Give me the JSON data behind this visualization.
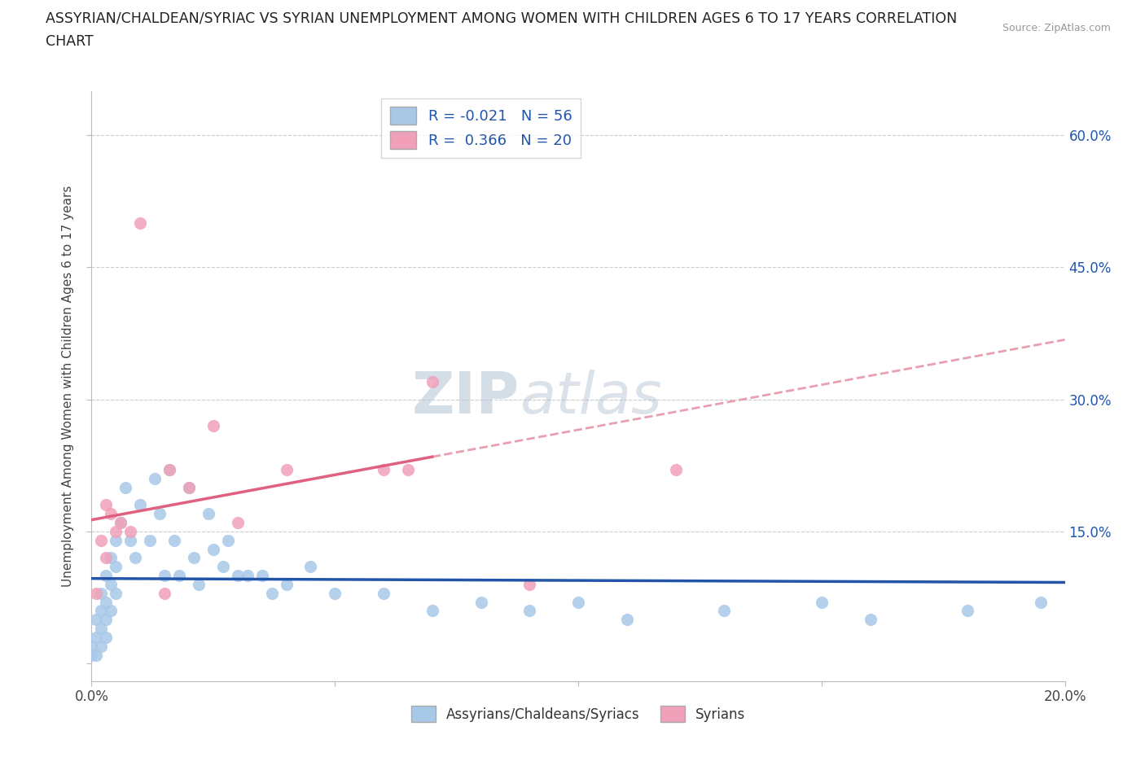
{
  "title_line1": "ASSYRIAN/CHALDEAN/SYRIAC VS SYRIAN UNEMPLOYMENT AMONG WOMEN WITH CHILDREN AGES 6 TO 17 YEARS CORRELATION",
  "title_line2": "CHART",
  "source": "Source: ZipAtlas.com",
  "ylabel": "Unemployment Among Women with Children Ages 6 to 17 years",
  "xlim": [
    0.0,
    0.2
  ],
  "ylim": [
    -0.02,
    0.65
  ],
  "x_ticks": [
    0.0,
    0.05,
    0.1,
    0.15,
    0.2
  ],
  "x_tick_labels": [
    "0.0%",
    "",
    "",
    "",
    "20.0%"
  ],
  "y_ticks": [
    0.0,
    0.15,
    0.3,
    0.45,
    0.6
  ],
  "y_tick_labels_right": [
    "",
    "15.0%",
    "30.0%",
    "45.0%",
    "60.0%"
  ],
  "r_blue": -0.021,
  "n_blue": 56,
  "r_pink": 0.366,
  "n_pink": 20,
  "blue_color": "#A8C8E8",
  "pink_color": "#F0A0B8",
  "blue_line_color": "#2255AA",
  "pink_line_color": "#E06080",
  "pink_dash_color": "#E8A0B0",
  "watermark_zip": "ZIP",
  "watermark_atlas": "atlas",
  "legend_label_blue": "Assyrians/Chaldeans/Syriacs",
  "legend_label_pink": "Syrians",
  "grid_color": "#CCCCCC",
  "background_color": "#FFFFFF",
  "blue_scatter_x": [
    0.0,
    0.0,
    0.001,
    0.001,
    0.001,
    0.002,
    0.002,
    0.002,
    0.002,
    0.003,
    0.003,
    0.003,
    0.003,
    0.004,
    0.004,
    0.004,
    0.005,
    0.005,
    0.005,
    0.006,
    0.007,
    0.008,
    0.009,
    0.01,
    0.012,
    0.013,
    0.014,
    0.015,
    0.016,
    0.017,
    0.018,
    0.02,
    0.021,
    0.022,
    0.024,
    0.025,
    0.027,
    0.028,
    0.03,
    0.032,
    0.035,
    0.037,
    0.04,
    0.045,
    0.05,
    0.06,
    0.07,
    0.08,
    0.09,
    0.1,
    0.11,
    0.13,
    0.15,
    0.16,
    0.18,
    0.195
  ],
  "blue_scatter_y": [
    0.02,
    0.01,
    0.05,
    0.03,
    0.01,
    0.08,
    0.06,
    0.04,
    0.02,
    0.1,
    0.07,
    0.05,
    0.03,
    0.12,
    0.09,
    0.06,
    0.14,
    0.11,
    0.08,
    0.16,
    0.2,
    0.14,
    0.12,
    0.18,
    0.14,
    0.21,
    0.17,
    0.1,
    0.22,
    0.14,
    0.1,
    0.2,
    0.12,
    0.09,
    0.17,
    0.13,
    0.11,
    0.14,
    0.1,
    0.1,
    0.1,
    0.08,
    0.09,
    0.11,
    0.08,
    0.08,
    0.06,
    0.07,
    0.06,
    0.07,
    0.05,
    0.06,
    0.07,
    0.05,
    0.06,
    0.07
  ],
  "pink_scatter_x": [
    0.001,
    0.002,
    0.003,
    0.003,
    0.004,
    0.005,
    0.006,
    0.008,
    0.01,
    0.015,
    0.016,
    0.02,
    0.025,
    0.03,
    0.04,
    0.06,
    0.065,
    0.07,
    0.09,
    0.12
  ],
  "pink_scatter_y": [
    0.08,
    0.14,
    0.12,
    0.18,
    0.17,
    0.15,
    0.16,
    0.15,
    0.5,
    0.08,
    0.22,
    0.2,
    0.27,
    0.16,
    0.22,
    0.22,
    0.22,
    0.32,
    0.09,
    0.22
  ]
}
